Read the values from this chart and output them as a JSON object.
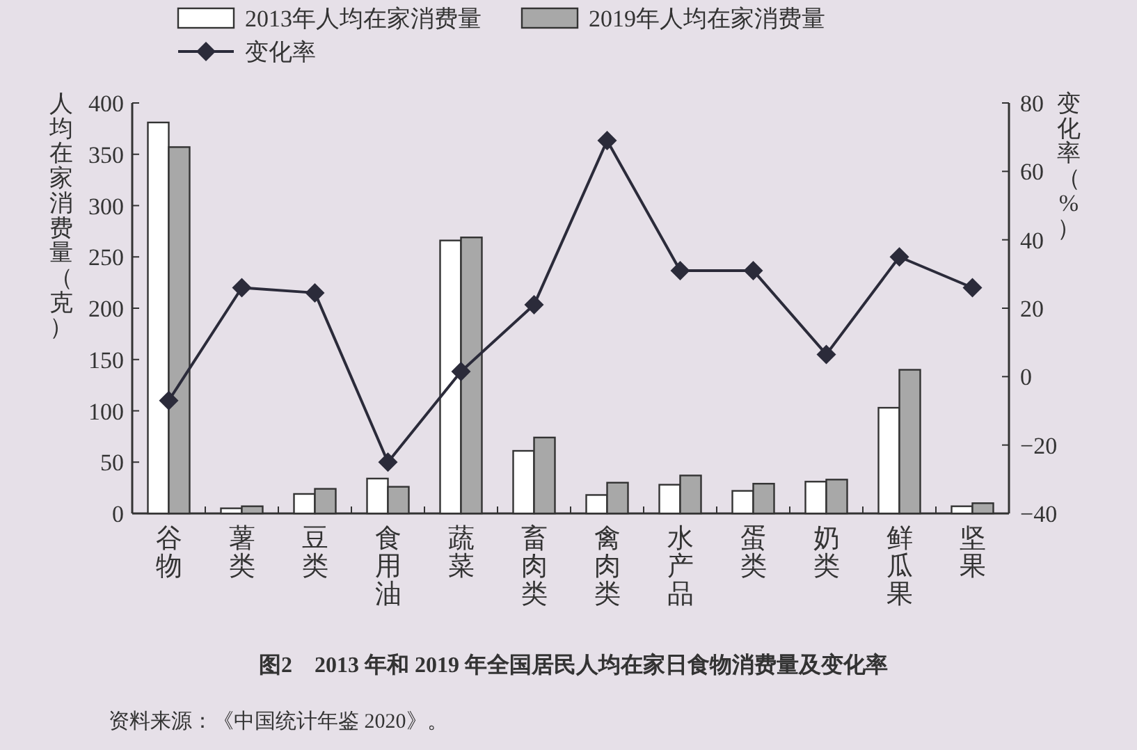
{
  "chart_data": {
    "type": "bar",
    "title": "图2　2013 年和 2019 年全国居民人均在家日食物消费量及变化率",
    "ylabel": "人均在家消费量（克）",
    "y2label": "变化率（%）",
    "annotations": [
      "资料来源：《中国统计年鉴 2020》。"
    ],
    "categories": [
      "谷物",
      "薯类",
      "豆类",
      "食用油",
      "蔬菜",
      "畜肉类",
      "禽肉类",
      "水产品",
      "蛋类",
      "奶类",
      "鲜瓜果",
      "坚果"
    ],
    "series": [
      {
        "name": "2013年人均在家消费量",
        "color": "#ffffff",
        "values": [
          381,
          5,
          19,
          34,
          266,
          61,
          18,
          28,
          22,
          31,
          103,
          7
        ]
      },
      {
        "name": "2019年人均在家消费量",
        "color": "#a8a8a8",
        "values": [
          357,
          7,
          24,
          26,
          269,
          74,
          30,
          37,
          29,
          33,
          140,
          10
        ]
      },
      {
        "name": "变化率",
        "type": "line",
        "axis": "y2",
        "color": "#2b2b3a",
        "marker": "diamond",
        "values": [
          -7,
          26,
          24.5,
          -25,
          1.5,
          21,
          69,
          31,
          31,
          6.5,
          35,
          26
        ]
      }
    ],
    "ylim": [
      0,
      400
    ],
    "yticks": [
      0,
      50,
      100,
      150,
      200,
      250,
      300,
      350,
      400
    ],
    "y2lim": [
      -40,
      80
    ],
    "y2ticks": [
      -40,
      -20,
      0,
      20,
      40,
      60,
      80
    ],
    "legend": "top",
    "grid": false
  }
}
